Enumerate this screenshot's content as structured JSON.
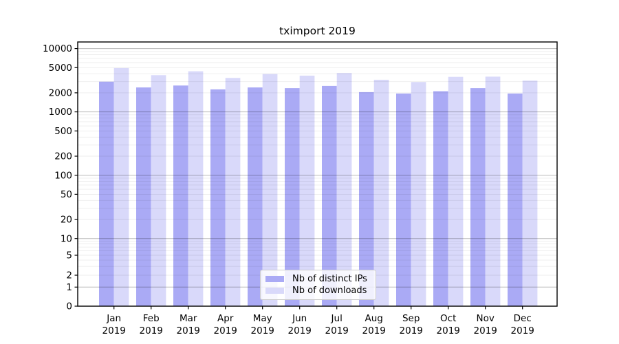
{
  "chart_data": {
    "type": "bar",
    "title": "tximport 2019",
    "scale": "symlog",
    "grid": true,
    "legend_position": "lower-center",
    "categories": [
      "Jan",
      "Feb",
      "Mar",
      "Apr",
      "May",
      "Jun",
      "Jul",
      "Aug",
      "Sep",
      "Oct",
      "Nov",
      "Dec"
    ],
    "x_tick_second_line": "2019",
    "yticks": [
      0,
      1,
      2,
      5,
      10,
      20,
      50,
      100,
      200,
      500,
      1000,
      2000,
      5000,
      10000
    ],
    "ylim": [
      0,
      12500
    ],
    "series": [
      {
        "name": "Nb of distinct IPs",
        "color": "#aaaaf5",
        "values": [
          3000,
          2430,
          2610,
          2270,
          2430,
          2370,
          2570,
          2050,
          1950,
          2120,
          2370,
          1950
        ]
      },
      {
        "name": "Nb of downloads",
        "color": "#d9d9fa",
        "values": [
          4930,
          3800,
          4380,
          3440,
          3960,
          3740,
          4100,
          3220,
          2960,
          3580,
          3600,
          3120
        ]
      }
    ],
    "grid_minor_color": "rgba(0,0,0,0.075)",
    "grid_major_color": "rgba(0,0,0,0.28)",
    "frame_color": "#000000",
    "text_color": "#000000"
  }
}
